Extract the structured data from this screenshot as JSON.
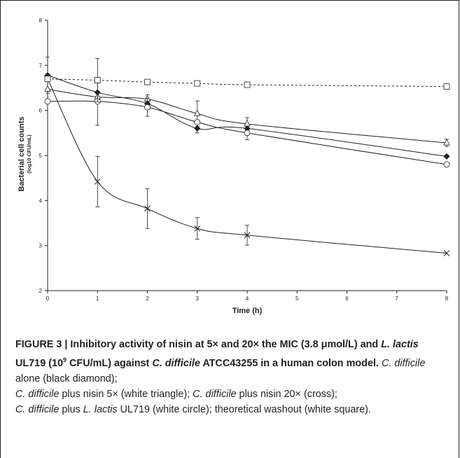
{
  "chart_data": {
    "type": "line",
    "xlabel": "Time (h)",
    "ylabel": "Bacterial cell counts",
    "ylabel_unit": "(log10 CFU/mL)",
    "x_ticks": [
      "0",
      "1",
      "2",
      "3",
      "4",
      "5",
      "6",
      "7",
      "8"
    ],
    "x": [
      0,
      1,
      2,
      3,
      4,
      8
    ],
    "ylim": [
      2,
      8
    ],
    "y_ticks": [
      2,
      3,
      4,
      5,
      6,
      7,
      8
    ],
    "series": [
      {
        "marker": "diamond-filled",
        "style": "solid",
        "values": [
          6.78,
          6.4,
          6.15,
          5.6,
          5.6,
          4.98
        ],
        "err": [
          0.4,
          0.0,
          0.0,
          0.1,
          0.0,
          0.0
        ]
      },
      {
        "marker": "triangle-open",
        "style": "solid",
        "values": [
          6.47,
          6.3,
          6.25,
          5.93,
          5.7,
          5.28
        ],
        "err": [
          0.0,
          0.0,
          0.1,
          0.28,
          0.14,
          0.08
        ]
      },
      {
        "marker": "cross",
        "style": "solid",
        "values": [
          6.7,
          4.42,
          3.82,
          3.38,
          3.23,
          2.83
        ],
        "err": [
          0.0,
          0.56,
          0.44,
          0.24,
          0.22,
          0.0
        ]
      },
      {
        "marker": "circle-open",
        "style": "solid",
        "values": [
          6.2,
          6.2,
          6.07,
          5.74,
          5.5,
          4.8
        ],
        "err": [
          0.0,
          0.53,
          0.2,
          0.0,
          0.15,
          0.0
        ]
      },
      {
        "marker": "square-open",
        "style": "dashed",
        "values": [
          6.7,
          6.67,
          6.63,
          6.6,
          6.57,
          6.53
        ],
        "err": [
          0.0,
          0.48,
          0.0,
          0.0,
          0.0,
          0.0
        ]
      }
    ]
  },
  "caption": {
    "fig_label": "FIGURE 3 |",
    "bold_1": " Inhibitory activity of nisin at 5× and 20× the MIC (3.8 μmol/L) and ",
    "bold_lactis": "L. lactis",
    "bold_2": " UL719 (10",
    "bold_sup": "9",
    "bold_3": " CFU/mL) against ",
    "bold_cdiff": "C. difficile",
    "bold_4": " ATCC43255 in a human colon model.",
    "item1_name": "C. difficile",
    "item1_text": " alone (black diamond); ",
    "item2_name": "C. difficile",
    "item2_text": " plus nisin 5× (white triangle); ",
    "item3_name": "C. difficile",
    "item3_text": " plus nisin 20× (cross); ",
    "item4_name": "C. difficile",
    "item4_mid": " plus ",
    "item4_lactis": "L. lactis",
    "item4_text": " UL719 (white circle); theoretical washout (white square)."
  }
}
